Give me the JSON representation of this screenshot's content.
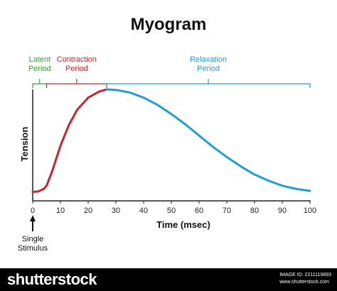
{
  "chart_data": {
    "type": "line",
    "title": "Myogram",
    "xlabel": "Time (msec)",
    "ylabel": "Tension",
    "xlim": [
      0,
      100
    ],
    "ylim": [
      0,
      1
    ],
    "x_ticks": [
      0,
      10,
      20,
      30,
      40,
      50,
      60,
      70,
      80,
      90,
      100
    ],
    "grid": false,
    "baseline": 0.05,
    "series": [
      {
        "name": "Contraction Period",
        "color": "#c8262e",
        "x": [
          0,
          2,
          4,
          5,
          7,
          10,
          13,
          16,
          20,
          24,
          26.7
        ],
        "y": [
          0.0,
          0.005,
          0.03,
          0.06,
          0.2,
          0.45,
          0.65,
          0.8,
          0.92,
          0.98,
          1.0
        ]
      },
      {
        "name": "Relaxation Period",
        "color": "#1e9fd4",
        "x": [
          26.7,
          30,
          35,
          40,
          45,
          50,
          55,
          60,
          65,
          70,
          75,
          80,
          85,
          90,
          95,
          100
        ],
        "y": [
          1.0,
          0.995,
          0.97,
          0.92,
          0.85,
          0.76,
          0.66,
          0.55,
          0.44,
          0.34,
          0.25,
          0.17,
          0.11,
          0.06,
          0.03,
          0.01
        ]
      }
    ],
    "periods": [
      {
        "label_lines": [
          "Latent",
          "Period"
        ],
        "start": 0,
        "end": 5,
        "color": "#3aa13a"
      },
      {
        "label_lines": [
          "Contraction",
          "Period"
        ],
        "start": 5,
        "end": 26.7,
        "color": "#c8262e"
      },
      {
        "label_lines": [
          "Relaxation",
          "Period"
        ],
        "start": 26.7,
        "end": 100,
        "color": "#1e9fd4"
      }
    ],
    "stimulus": {
      "x": 0,
      "label_lines": [
        "Single",
        "Stimulus"
      ]
    }
  },
  "footer": {
    "logo": "shutterstock",
    "image_id": "IMAGE ID: 2211119893",
    "site": "www.shutterstock.com"
  }
}
